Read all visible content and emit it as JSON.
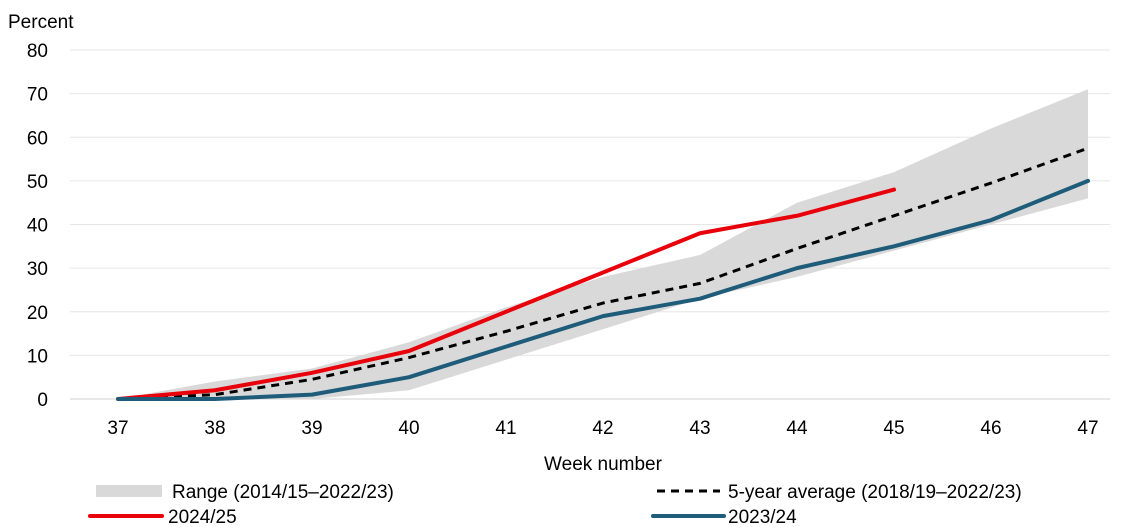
{
  "chart_data": {
    "type": "line",
    "ylabel": "Percent",
    "xlabel": "Week number",
    "ylim": [
      0,
      80
    ],
    "yticks": [
      0,
      10,
      20,
      30,
      40,
      50,
      60,
      70,
      80
    ],
    "x": [
      37,
      38,
      39,
      40,
      41,
      42,
      43,
      44,
      45,
      46,
      47
    ],
    "x_tick_labels": [
      "37",
      "38",
      "39",
      "40",
      "41",
      "42",
      "43",
      "44",
      "45",
      "46",
      "47"
    ],
    "grid": "horizontal",
    "range": {
      "name": "Range (2014/15–2022/23)",
      "color": "#d9d9d9",
      "upper": [
        0,
        4,
        7,
        13,
        21,
        28,
        33,
        45,
        52,
        62,
        71
      ],
      "lower": [
        0,
        0,
        0,
        2,
        9,
        16,
        23,
        28,
        34,
        40,
        46
      ]
    },
    "series": [
      {
        "name": "5-year average (2018/19–2022/23)",
        "color": "#000000",
        "style": "dashed",
        "values": [
          0,
          1,
          4.5,
          9.5,
          15.5,
          22,
          26.5,
          34.5,
          42,
          49.5,
          57.5
        ]
      },
      {
        "name": "2024/25",
        "color": "#e8000b",
        "style": "solid",
        "values": [
          0,
          2,
          6,
          11,
          20,
          29,
          38,
          42,
          48,
          null,
          null
        ]
      },
      {
        "name": "2023/24",
        "color": "#1f5c7a",
        "style": "solid",
        "values": [
          0,
          0,
          1,
          5,
          12,
          19,
          23,
          30,
          35,
          41,
          50
        ]
      }
    ],
    "legend": {
      "placement": "bottom",
      "entries": [
        {
          "label": "Range (2014/15–2022/23)",
          "kind": "band",
          "color": "#d9d9d9"
        },
        {
          "label": "5-year average (2018/19–2022/23)",
          "kind": "dashed",
          "color": "#000000"
        },
        {
          "label": "2024/25",
          "kind": "line",
          "color": "#e8000b"
        },
        {
          "label": "2023/24",
          "kind": "line",
          "color": "#1f5c7a"
        }
      ]
    }
  }
}
